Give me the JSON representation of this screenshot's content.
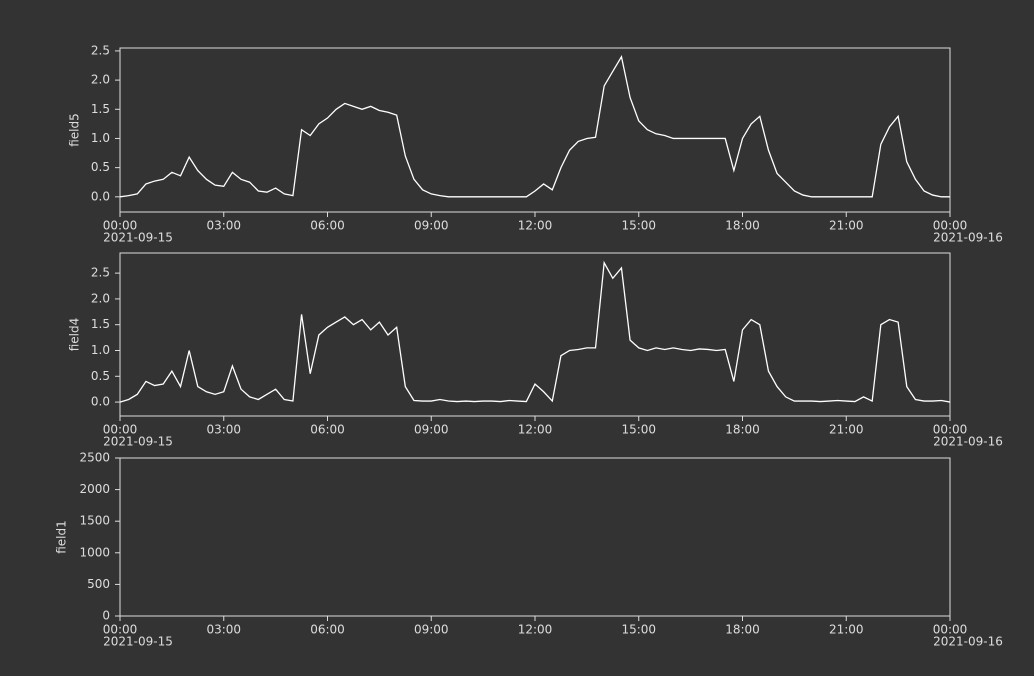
{
  "chart_data": [
    {
      "type": "line",
      "y_label": "field5",
      "color": "#ffffff",
      "xlim": [
        "2021-09-15 00:00",
        "2021-09-16 00:00"
      ],
      "xticks": [
        {
          "value": "2021-09-15 00:00",
          "label": "00:00",
          "date": "2021-09-15"
        },
        {
          "value": "2021-09-15 03:00",
          "label": "03:00"
        },
        {
          "value": "2021-09-15 06:00",
          "label": "06:00"
        },
        {
          "value": "2021-09-15 09:00",
          "label": "09:00"
        },
        {
          "value": "2021-09-15 12:00",
          "label": "12:00"
        },
        {
          "value": "2021-09-15 15:00",
          "label": "15:00"
        },
        {
          "value": "2021-09-15 18:00",
          "label": "18:00"
        },
        {
          "value": "2021-09-15 21:00",
          "label": "21:00"
        },
        {
          "value": "2021-09-16 00:00",
          "label": "00:00",
          "date": "2021-09-16"
        }
      ],
      "ylim": [
        -0.26,
        2.55
      ],
      "yticks": [
        {
          "value": 0,
          "label": "0.0"
        },
        0.5,
        {
          "value": 1,
          "label": "1.0"
        },
        1.5,
        {
          "value": 2,
          "label": "2.0"
        },
        2.5
      ],
      "x": [
        "2021-09-15 00:00",
        "2021-09-15 00:15",
        "2021-09-15 00:30",
        "2021-09-15 00:45",
        "2021-09-15 01:00",
        "2021-09-15 01:15",
        "2021-09-15 01:30",
        "2021-09-15 01:45",
        "2021-09-15 02:00",
        "2021-09-15 02:15",
        "2021-09-15 02:30",
        "2021-09-15 02:45",
        "2021-09-15 03:00",
        "2021-09-15 03:15",
        "2021-09-15 03:30",
        "2021-09-15 03:45",
        "2021-09-15 04:00",
        "2021-09-15 04:15",
        "2021-09-15 04:30",
        "2021-09-15 04:45",
        "2021-09-15 05:00",
        "2021-09-15 05:15",
        "2021-09-15 05:30",
        "2021-09-15 05:45",
        "2021-09-15 06:00",
        "2021-09-15 06:15",
        "2021-09-15 06:30",
        "2021-09-15 06:45",
        "2021-09-15 07:00",
        "2021-09-15 07:15",
        "2021-09-15 07:30",
        "2021-09-15 07:45",
        "2021-09-15 08:00",
        "2021-09-15 08:15",
        "2021-09-15 08:30",
        "2021-09-15 08:45",
        "2021-09-15 09:00",
        "2021-09-15 09:15",
        "2021-09-15 09:30",
        "2021-09-15 09:45",
        "2021-09-15 10:00",
        "2021-09-15 10:15",
        "2021-09-15 10:30",
        "2021-09-15 10:45",
        "2021-09-15 11:00",
        "2021-09-15 11:15",
        "2021-09-15 11:30",
        "2021-09-15 11:45",
        "2021-09-15 12:00",
        "2021-09-15 12:15",
        "2021-09-15 12:30",
        "2021-09-15 12:45",
        "2021-09-15 13:00",
        "2021-09-15 13:15",
        "2021-09-15 13:30",
        "2021-09-15 13:45",
        "2021-09-15 14:00",
        "2021-09-15 14:15",
        "2021-09-15 14:30",
        "2021-09-15 14:45",
        "2021-09-15 15:00",
        "2021-09-15 15:15",
        "2021-09-15 15:30",
        "2021-09-15 15:45",
        "2021-09-15 16:00",
        "2021-09-15 16:15",
        "2021-09-15 16:30",
        "2021-09-15 16:45",
        "2021-09-15 17:00",
        "2021-09-15 17:15",
        "2021-09-15 17:30",
        "2021-09-15 17:45",
        "2021-09-15 18:00",
        "2021-09-15 18:15",
        "2021-09-15 18:30",
        "2021-09-15 18:45",
        "2021-09-15 19:00",
        "2021-09-15 19:15",
        "2021-09-15 19:30",
        "2021-09-15 19:45",
        "2021-09-15 20:00",
        "2021-09-15 20:15",
        "2021-09-15 20:30",
        "2021-09-15 20:45",
        "2021-09-15 21:00",
        "2021-09-15 21:15",
        "2021-09-15 21:30",
        "2021-09-15 21:45",
        "2021-09-15 22:00",
        "2021-09-15 22:15",
        "2021-09-15 22:30",
        "2021-09-15 22:45",
        "2021-09-15 23:00",
        "2021-09-15 23:15",
        "2021-09-15 23:30",
        "2021-09-15 23:45",
        "2021-09-16 00:00"
      ],
      "values": [
        0.0,
        0.02,
        0.05,
        0.22,
        0.27,
        0.3,
        0.42,
        0.36,
        0.68,
        0.45,
        0.3,
        0.2,
        0.18,
        0.42,
        0.3,
        0.25,
        0.1,
        0.08,
        0.15,
        0.05,
        0.02,
        1.15,
        1.05,
        1.25,
        1.35,
        1.5,
        1.6,
        1.55,
        1.5,
        1.55,
        1.48,
        1.45,
        1.4,
        0.7,
        0.3,
        0.12,
        0.05,
        0.02,
        0,
        0,
        0,
        0,
        0,
        0,
        0,
        0,
        0,
        0,
        0.1,
        0.22,
        0.12,
        0.5,
        0.8,
        0.95,
        1.0,
        1.02,
        1.9,
        2.15,
        2.4,
        1.7,
        1.3,
        1.15,
        1.08,
        1.05,
        1,
        1,
        1,
        1,
        1,
        1,
        1,
        0.45,
        1.0,
        1.25,
        1.38,
        0.8,
        0.4,
        0.25,
        0.1,
        0.03,
        0,
        0,
        0,
        0,
        0,
        0,
        0,
        0,
        0.9,
        1.2,
        1.38,
        0.6,
        0.3,
        0.1,
        0.03,
        0,
        0
      ]
    },
    {
      "type": "line",
      "y_label": "field4",
      "color": "#ffffff",
      "xlim": [
        "2021-09-15 00:00",
        "2021-09-16 00:00"
      ],
      "xticks": [
        {
          "value": "2021-09-15 00:00",
          "label": "00:00",
          "date": "2021-09-15"
        },
        {
          "value": "2021-09-15 03:00",
          "label": "03:00"
        },
        {
          "value": "2021-09-15 06:00",
          "label": "06:00"
        },
        {
          "value": "2021-09-15 09:00",
          "label": "09:00"
        },
        {
          "value": "2021-09-15 12:00",
          "label": "12:00"
        },
        {
          "value": "2021-09-15 15:00",
          "label": "15:00"
        },
        {
          "value": "2021-09-15 18:00",
          "label": "18:00"
        },
        {
          "value": "2021-09-15 21:00",
          "label": "21:00"
        },
        {
          "value": "2021-09-16 00:00",
          "label": "00:00",
          "date": "2021-09-16"
        }
      ],
      "ylim": [
        -0.27,
        2.89
      ],
      "yticks": [
        {
          "value": 0,
          "label": "0.0"
        },
        0.5,
        {
          "value": 1,
          "label": "1.0"
        },
        1.5,
        {
          "value": 2,
          "label": "2.0"
        },
        2.5
      ],
      "x": [
        "2021-09-15 00:00",
        "2021-09-15 00:15",
        "2021-09-15 00:30",
        "2021-09-15 00:45",
        "2021-09-15 01:00",
        "2021-09-15 01:15",
        "2021-09-15 01:30",
        "2021-09-15 01:45",
        "2021-09-15 02:00",
        "2021-09-15 02:15",
        "2021-09-15 02:30",
        "2021-09-15 02:45",
        "2021-09-15 03:00",
        "2021-09-15 03:15",
        "2021-09-15 03:30",
        "2021-09-15 03:45",
        "2021-09-15 04:00",
        "2021-09-15 04:15",
        "2021-09-15 04:30",
        "2021-09-15 04:45",
        "2021-09-15 05:00",
        "2021-09-15 05:15",
        "2021-09-15 05:30",
        "2021-09-15 05:45",
        "2021-09-15 06:00",
        "2021-09-15 06:15",
        "2021-09-15 06:30",
        "2021-09-15 06:45",
        "2021-09-15 07:00",
        "2021-09-15 07:15",
        "2021-09-15 07:30",
        "2021-09-15 07:45",
        "2021-09-15 08:00",
        "2021-09-15 08:15",
        "2021-09-15 08:30",
        "2021-09-15 08:45",
        "2021-09-15 09:00",
        "2021-09-15 09:15",
        "2021-09-15 09:30",
        "2021-09-15 09:45",
        "2021-09-15 10:00",
        "2021-09-15 10:15",
        "2021-09-15 10:30",
        "2021-09-15 10:45",
        "2021-09-15 11:00",
        "2021-09-15 11:15",
        "2021-09-15 11:30",
        "2021-09-15 11:45",
        "2021-09-15 12:00",
        "2021-09-15 12:15",
        "2021-09-15 12:30",
        "2021-09-15 12:45",
        "2021-09-15 13:00",
        "2021-09-15 13:15",
        "2021-09-15 13:30",
        "2021-09-15 13:45",
        "2021-09-15 14:00",
        "2021-09-15 14:15",
        "2021-09-15 14:30",
        "2021-09-15 14:45",
        "2021-09-15 15:00",
        "2021-09-15 15:15",
        "2021-09-15 15:30",
        "2021-09-15 15:45",
        "2021-09-15 16:00",
        "2021-09-15 16:15",
        "2021-09-15 16:30",
        "2021-09-15 16:45",
        "2021-09-15 17:00",
        "2021-09-15 17:15",
        "2021-09-15 17:30",
        "2021-09-15 17:45",
        "2021-09-15 18:00",
        "2021-09-15 18:15",
        "2021-09-15 18:30",
        "2021-09-15 18:45",
        "2021-09-15 19:00",
        "2021-09-15 19:15",
        "2021-09-15 19:30",
        "2021-09-15 19:45",
        "2021-09-15 20:00",
        "2021-09-15 20:15",
        "2021-09-15 20:30",
        "2021-09-15 20:45",
        "2021-09-15 21:00",
        "2021-09-15 21:15",
        "2021-09-15 21:30",
        "2021-09-15 21:45",
        "2021-09-15 22:00",
        "2021-09-15 22:15",
        "2021-09-15 22:30",
        "2021-09-15 22:45",
        "2021-09-15 23:00",
        "2021-09-15 23:15",
        "2021-09-15 23:30",
        "2021-09-15 23:45",
        "2021-09-16 00:00"
      ],
      "values": [
        0,
        0.05,
        0.15,
        0.4,
        0.32,
        0.35,
        0.6,
        0.3,
        1.0,
        0.3,
        0.2,
        0.15,
        0.2,
        0.7,
        0.25,
        0.1,
        0.05,
        0.15,
        0.25,
        0.05,
        0.02,
        1.7,
        0.55,
        1.3,
        1.45,
        1.55,
        1.65,
        1.5,
        1.6,
        1.4,
        1.55,
        1.3,
        1.45,
        0.3,
        0.03,
        0.02,
        0.02,
        0.05,
        0.02,
        0.01,
        0.02,
        0.01,
        0.02,
        0.02,
        0.01,
        0.03,
        0.02,
        0.01,
        0.35,
        0.2,
        0.02,
        0.9,
        1.0,
        1.02,
        1.05,
        1.05,
        2.7,
        2.4,
        2.6,
        1.2,
        1.05,
        1.0,
        1.05,
        1.02,
        1.05,
        1.02,
        1.0,
        1.03,
        1.02,
        1.0,
        1.02,
        0.4,
        1.4,
        1.6,
        1.5,
        0.6,
        0.3,
        0.1,
        0.02,
        0.02,
        0.02,
        0.01,
        0.02,
        0.03,
        0.02,
        0.01,
        0.1,
        0.02,
        1.5,
        1.6,
        1.55,
        0.3,
        0.05,
        0.02,
        0.02,
        0.03,
        0.0
      ]
    },
    {
      "type": "line",
      "y_label": "field1",
      "color": "#ffffff",
      "xlim": [
        "2021-09-15 00:00",
        "2021-09-16 00:00"
      ],
      "xticks": [
        {
          "value": "2021-09-15 00:00",
          "label": "00:00",
          "date": "2021-09-15"
        },
        {
          "value": "2021-09-15 03:00",
          "label": "03:00"
        },
        {
          "value": "2021-09-15 06:00",
          "label": "06:00"
        },
        {
          "value": "2021-09-15 09:00",
          "label": "09:00"
        },
        {
          "value": "2021-09-15 12:00",
          "label": "12:00"
        },
        {
          "value": "2021-09-15 15:00",
          "label": "15:00"
        },
        {
          "value": "2021-09-15 18:00",
          "label": "18:00"
        },
        {
          "value": "2021-09-15 21:00",
          "label": "21:00"
        },
        {
          "value": "2021-09-16 00:00",
          "label": "00:00",
          "date": "2021-09-16"
        }
      ],
      "ylim": [
        0,
        2500
      ],
      "yticks": [
        0,
        500,
        1000,
        1500,
        2000,
        2500
      ],
      "x": [],
      "values": []
    }
  ]
}
